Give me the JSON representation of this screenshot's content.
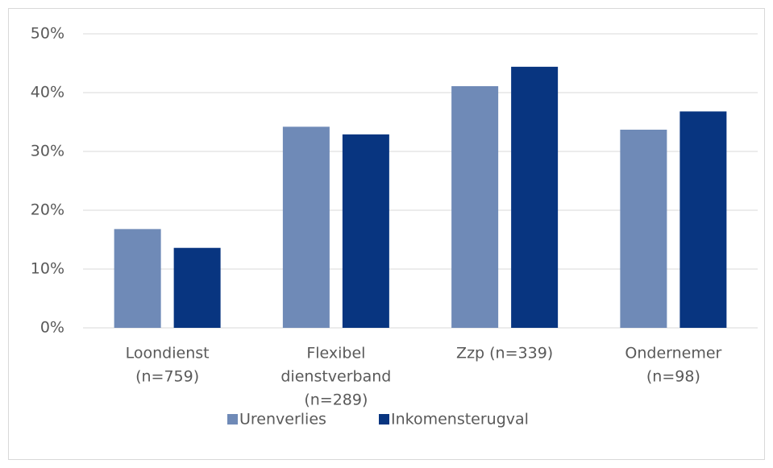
{
  "chart_data": {
    "type": "bar",
    "categories": [
      [
        "Loondienst",
        "(n=759)"
      ],
      [
        "Flexibel",
        "dienstverband",
        "(n=289)"
      ],
      [
        "Zzp (n=339)"
      ],
      [
        "Ondernemer",
        "(n=98)"
      ]
    ],
    "series": [
      {
        "name": "Urenverlies",
        "color": "#6f8ab7",
        "values": [
          16.8,
          34.2,
          41.1,
          33.7
        ]
      },
      {
        "name": "Inkomensterugval",
        "color": "#083580",
        "values": [
          13.6,
          32.9,
          44.4,
          36.8
        ]
      }
    ],
    "ylim": [
      0,
      50
    ],
    "yticks": [
      {
        "value": 0,
        "label": "0%"
      },
      {
        "value": 10,
        "label": "10%"
      },
      {
        "value": 20,
        "label": "20%"
      },
      {
        "value": 30,
        "label": "30%"
      },
      {
        "value": 40,
        "label": "40%"
      },
      {
        "value": 50,
        "label": "50%"
      }
    ],
    "grid": true,
    "legend": "bottom"
  }
}
